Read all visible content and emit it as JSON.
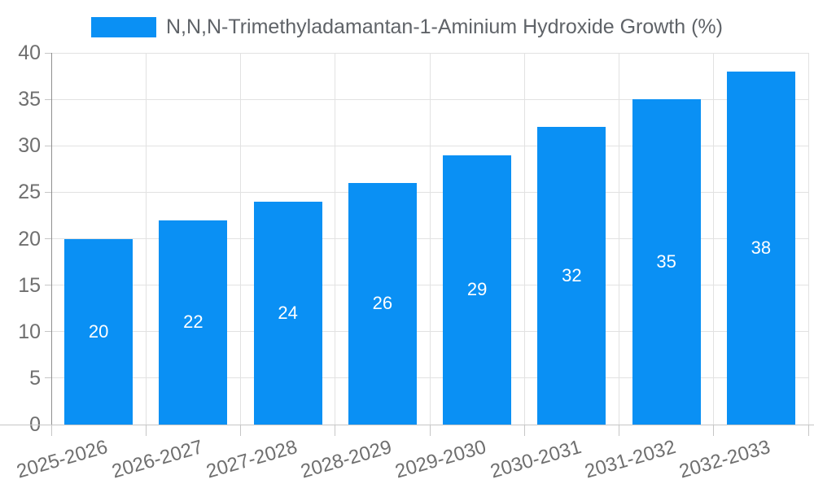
{
  "chart_data": {
    "type": "bar",
    "title": "N,N,N-Trimethyladamantan-1-Aminium Hydroxide Growth (%)",
    "categories": [
      "2025-2026",
      "2026-2027",
      "2027-2028",
      "2028-2029",
      "2029-2030",
      "2030-2031",
      "2031-2032",
      "2032-2033"
    ],
    "values": [
      20,
      22,
      24,
      26,
      29,
      32,
      35,
      38
    ],
    "data_labels": [
      "20",
      "22",
      "24",
      "26",
      "29",
      "32",
      "35",
      "38"
    ],
    "xlabel": "",
    "ylabel": "",
    "ylim": [
      0,
      40
    ],
    "yticks": [
      0,
      5,
      10,
      15,
      20,
      25,
      30,
      35,
      40
    ],
    "grid": true,
    "legend_position": "top-center",
    "x_label_rotation_deg": -16,
    "colors": {
      "bar": "#0a90f4",
      "data_label": "#ffffff",
      "grid": "#e2e2e2",
      "axis_line": "#8f8f8f",
      "baseline": "#c6c6c6",
      "tick_mark": "#c6c6c6",
      "axis_text": "#6f6f6f",
      "title_text": "#5f6368"
    }
  }
}
